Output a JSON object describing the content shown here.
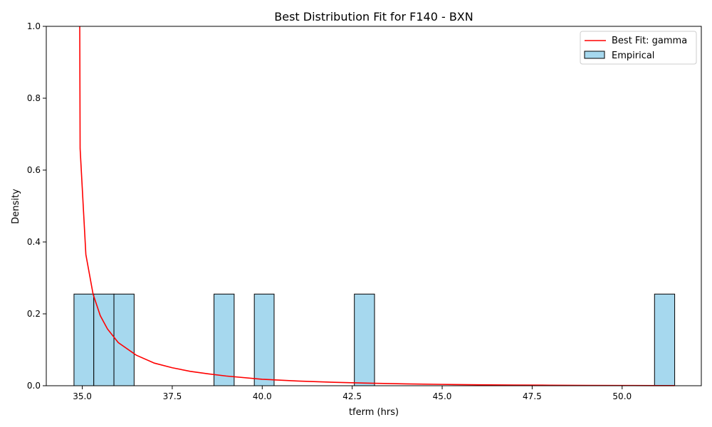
{
  "chart_data": {
    "type": "bar",
    "title": "Best Distribution Fit for F140 - BXN",
    "xlabel": "tferm (hrs)",
    "ylabel": "Density",
    "xlim": [
      34.0,
      52.2
    ],
    "ylim": [
      0,
      1.0
    ],
    "xticks": [
      35.0,
      37.5,
      40.0,
      42.5,
      45.0,
      47.5,
      50.0
    ],
    "xtick_labels": [
      "35.0",
      "37.5",
      "40.0",
      "42.5",
      "45.0",
      "47.5",
      "50.0"
    ],
    "yticks": [
      0.0,
      0.2,
      0.4,
      0.6,
      0.8,
      1.0
    ],
    "ytick_labels": [
      "0.0",
      "0.2",
      "0.4",
      "0.6",
      "0.8",
      "1.0"
    ],
    "legend_position": "top-right",
    "histogram": {
      "name": "Empirical",
      "color": "#a6d8ee",
      "edge_color": "#000000",
      "bins": [
        {
          "x0": 34.77,
          "x1": 35.32,
          "density": 0.255
        },
        {
          "x0": 35.32,
          "x1": 35.88,
          "density": 0.255
        },
        {
          "x0": 35.88,
          "x1": 36.44,
          "density": 0.255
        },
        {
          "x0": 38.66,
          "x1": 39.22,
          "density": 0.255
        },
        {
          "x0": 39.78,
          "x1": 40.33,
          "density": 0.255
        },
        {
          "x0": 42.56,
          "x1": 43.12,
          "density": 0.255
        },
        {
          "x0": 50.9,
          "x1": 51.46,
          "density": 0.255
        }
      ]
    },
    "fit_line": {
      "name": "Best Fit: gamma",
      "color": "#ff0000",
      "x": [
        34.93,
        34.94,
        35.1,
        35.3,
        35.5,
        35.7,
        36.0,
        36.5,
        37.0,
        37.5,
        38.0,
        38.5,
        39.0,
        40.0,
        41.0,
        42.0,
        43.0,
        44.0,
        45.0,
        46.0,
        47.0,
        48.0,
        49.0,
        50.0,
        51.0,
        51.46
      ],
      "y": [
        1.0,
        0.66,
        0.365,
        0.255,
        0.195,
        0.158,
        0.12,
        0.085,
        0.063,
        0.05,
        0.04,
        0.033,
        0.027,
        0.018,
        0.013,
        0.0095,
        0.007,
        0.005,
        0.0037,
        0.0027,
        0.002,
        0.0014,
        0.001,
        0.0007,
        0.0004,
        0.0003
      ]
    }
  }
}
